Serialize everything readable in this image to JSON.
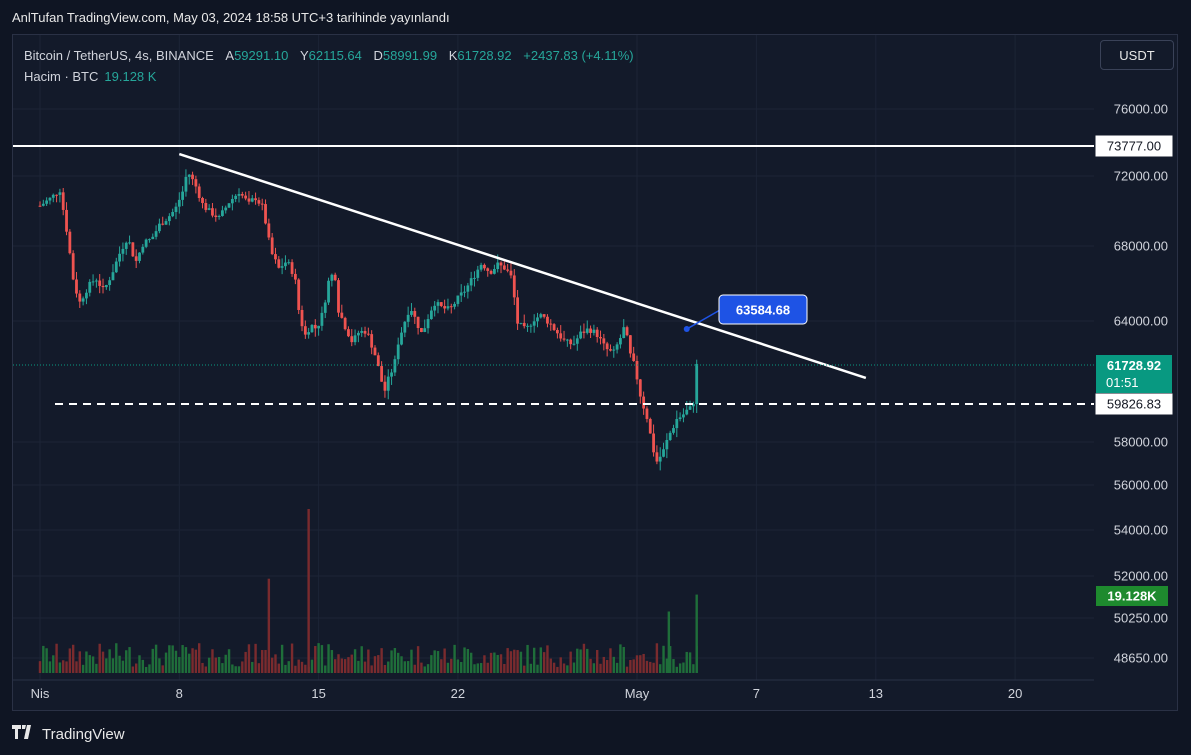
{
  "header": {
    "published_line": "AnlTufan TradingView.com, May 03, 2024 18:58 UTC+3 tarihinde yayınlandı"
  },
  "legend": {
    "symbol": "Bitcoin / TetherUS, 4s, BINANCE",
    "open_label": "A",
    "open_value": "59291.10",
    "high_label": "Y",
    "high_value": "62115.64",
    "low_label": "D",
    "low_value": "58991.99",
    "close_label": "K",
    "close_value": "61728.92",
    "change": "+2437.83 (+4.11%)",
    "volume_label": "Hacim · BTC",
    "volume_value": "19.128 K"
  },
  "toolbar": {
    "currency": "USDT"
  },
  "footer": {
    "brand": "TradingView"
  },
  "colors": {
    "up": "#26a69a",
    "down": "#ef5350",
    "vol_up": "#1f6e3a",
    "vol_down": "#7a2b2e",
    "price_badge": "#089981",
    "volume_badge": "#1e8a2e",
    "callout": "#1e53e5"
  },
  "chart_data": {
    "type": "candlestick",
    "symbol": "Bitcoin / TetherUS",
    "timeframe": "4s",
    "price_axis_ticks": [
      "76000.00",
      "72000.00",
      "68000.00",
      "64000.00",
      "58000.00",
      "56000.00",
      "54000.00",
      "52000.00",
      "50250.00",
      "48650.00"
    ],
    "x_ticks": [
      {
        "label": "Nis",
        "day": 0
      },
      {
        "label": "8",
        "day": 7
      },
      {
        "label": "15",
        "day": 14
      },
      {
        "label": "22",
        "day": 21
      },
      {
        "label": "May",
        "day": 30
      },
      {
        "label": "7",
        "day": 36
      },
      {
        "label": "13",
        "day": 42
      },
      {
        "label": "20",
        "day": 49
      }
    ],
    "price_path": [
      [
        0.0,
        70300
      ],
      [
        0.5,
        70700
      ],
      [
        1.0,
        71200
      ],
      [
        1.3,
        69200
      ],
      [
        1.7,
        66000
      ],
      [
        2.0,
        65000
      ],
      [
        2.4,
        65800
      ],
      [
        2.8,
        66300
      ],
      [
        3.2,
        65600
      ],
      [
        3.6,
        66500
      ],
      [
        4.0,
        67600
      ],
      [
        4.4,
        68500
      ],
      [
        4.8,
        67100
      ],
      [
        5.2,
        68200
      ],
      [
        5.6,
        68400
      ],
      [
        6.0,
        69200
      ],
      [
        6.4,
        69600
      ],
      [
        6.8,
        70100
      ],
      [
        7.2,
        71200
      ],
      [
        7.4,
        72300
      ],
      [
        7.8,
        71500
      ],
      [
        8.2,
        70300
      ],
      [
        8.6,
        69900
      ],
      [
        9.0,
        69600
      ],
      [
        9.5,
        70500
      ],
      [
        10.0,
        71100
      ],
      [
        10.5,
        70400
      ],
      [
        10.8,
        70800
      ],
      [
        11.2,
        70200
      ],
      [
        11.6,
        67700
      ],
      [
        12.0,
        66800
      ],
      [
        12.4,
        67200
      ],
      [
        12.8,
        66400
      ],
      [
        13.0,
        64600
      ],
      [
        13.3,
        63200
      ],
      [
        13.6,
        63800
      ],
      [
        13.9,
        63600
      ],
      [
        14.2,
        64400
      ],
      [
        14.5,
        66100
      ],
      [
        14.8,
        66700
      ],
      [
        15.0,
        64600
      ],
      [
        15.3,
        63800
      ],
      [
        15.7,
        62900
      ],
      [
        16.0,
        63400
      ],
      [
        16.4,
        63500
      ],
      [
        16.8,
        62400
      ],
      [
        17.0,
        61600
      ],
      [
        17.3,
        60400
      ],
      [
        17.6,
        61300
      ],
      [
        17.8,
        61700
      ],
      [
        18.0,
        62900
      ],
      [
        18.3,
        63900
      ],
      [
        18.6,
        64800
      ],
      [
        18.9,
        64000
      ],
      [
        19.2,
        63300
      ],
      [
        19.5,
        64200
      ],
      [
        19.8,
        65000
      ],
      [
        20.2,
        64700
      ],
      [
        20.6,
        64600
      ],
      [
        21.0,
        65200
      ],
      [
        21.4,
        65700
      ],
      [
        21.8,
        66400
      ],
      [
        22.2,
        67100
      ],
      [
        22.6,
        66600
      ],
      [
        23.0,
        67000
      ],
      [
        23.4,
        66800
      ],
      [
        23.7,
        66300
      ],
      [
        24.0,
        63900
      ],
      [
        24.4,
        63500
      ],
      [
        24.8,
        64100
      ],
      [
        25.2,
        64300
      ],
      [
        25.6,
        63900
      ],
      [
        26.0,
        63400
      ],
      [
        26.4,
        62900
      ],
      [
        26.8,
        62800
      ],
      [
        27.2,
        63400
      ],
      [
        27.6,
        63600
      ],
      [
        28.0,
        63300
      ],
      [
        28.4,
        62600
      ],
      [
        28.8,
        62300
      ],
      [
        29.2,
        63200
      ],
      [
        29.4,
        63800
      ],
      [
        29.6,
        62400
      ],
      [
        29.9,
        61600
      ],
      [
        30.2,
        60100
      ],
      [
        30.5,
        59200
      ],
      [
        30.8,
        57700
      ],
      [
        31.0,
        57100
      ],
      [
        31.3,
        57500
      ],
      [
        31.6,
        58300
      ],
      [
        32.0,
        59100
      ],
      [
        32.3,
        59300
      ],
      [
        32.6,
        59600
      ],
      [
        32.8,
        59600
      ],
      [
        33.0,
        61700
      ]
    ],
    "volume_spikes_btc_k": [
      {
        "day": 13.5,
        "volume": 40
      },
      {
        "day": 11.5,
        "volume": 23
      },
      {
        "day": 31.6,
        "volume": 15
      },
      {
        "day": 33.0,
        "volume": 19.128
      }
    ],
    "levels": [
      {
        "type": "horizontal-solid",
        "value": 73777.0,
        "label": "73777.00"
      },
      {
        "type": "horizontal-dashed",
        "value": 59826.83,
        "label": "59826.83"
      }
    ],
    "trendline": {
      "start": {
        "day": 7.0,
        "price": 73300
      },
      "end": {
        "day": 41.5,
        "price": 61100
      }
    },
    "callout": {
      "day": 32.5,
      "price": 63584.68,
      "label": "63584.68"
    },
    "last_price": {
      "value": 61728.92,
      "label": "61728.92",
      "countdown": "01:51"
    },
    "last_volume": {
      "label": "19.128K"
    }
  }
}
